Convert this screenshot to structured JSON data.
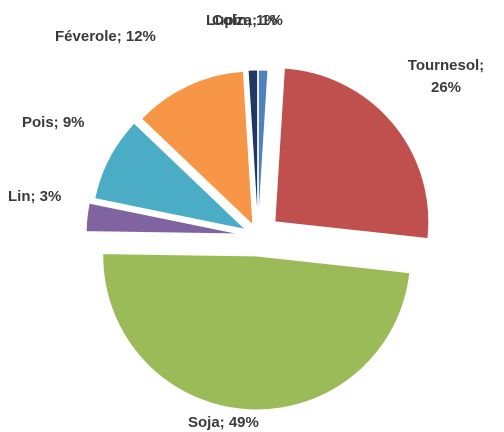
{
  "chart_data": {
    "type": "pie",
    "labels": [
      "Colza; 1%",
      "Tournesol; 26%",
      "Soja; 49%",
      "Lin; 3%",
      "Pois; 9%",
      "Féverole; 12%",
      "Lupin; 1%"
    ],
    "values": [
      1,
      26,
      49,
      3,
      9,
      12,
      1
    ],
    "colors": [
      "#4f81bd",
      "#c0504d",
      "#9bbb59",
      "#8064a2",
      "#4bacc6",
      "#f79646",
      "#1f3864"
    ]
  }
}
